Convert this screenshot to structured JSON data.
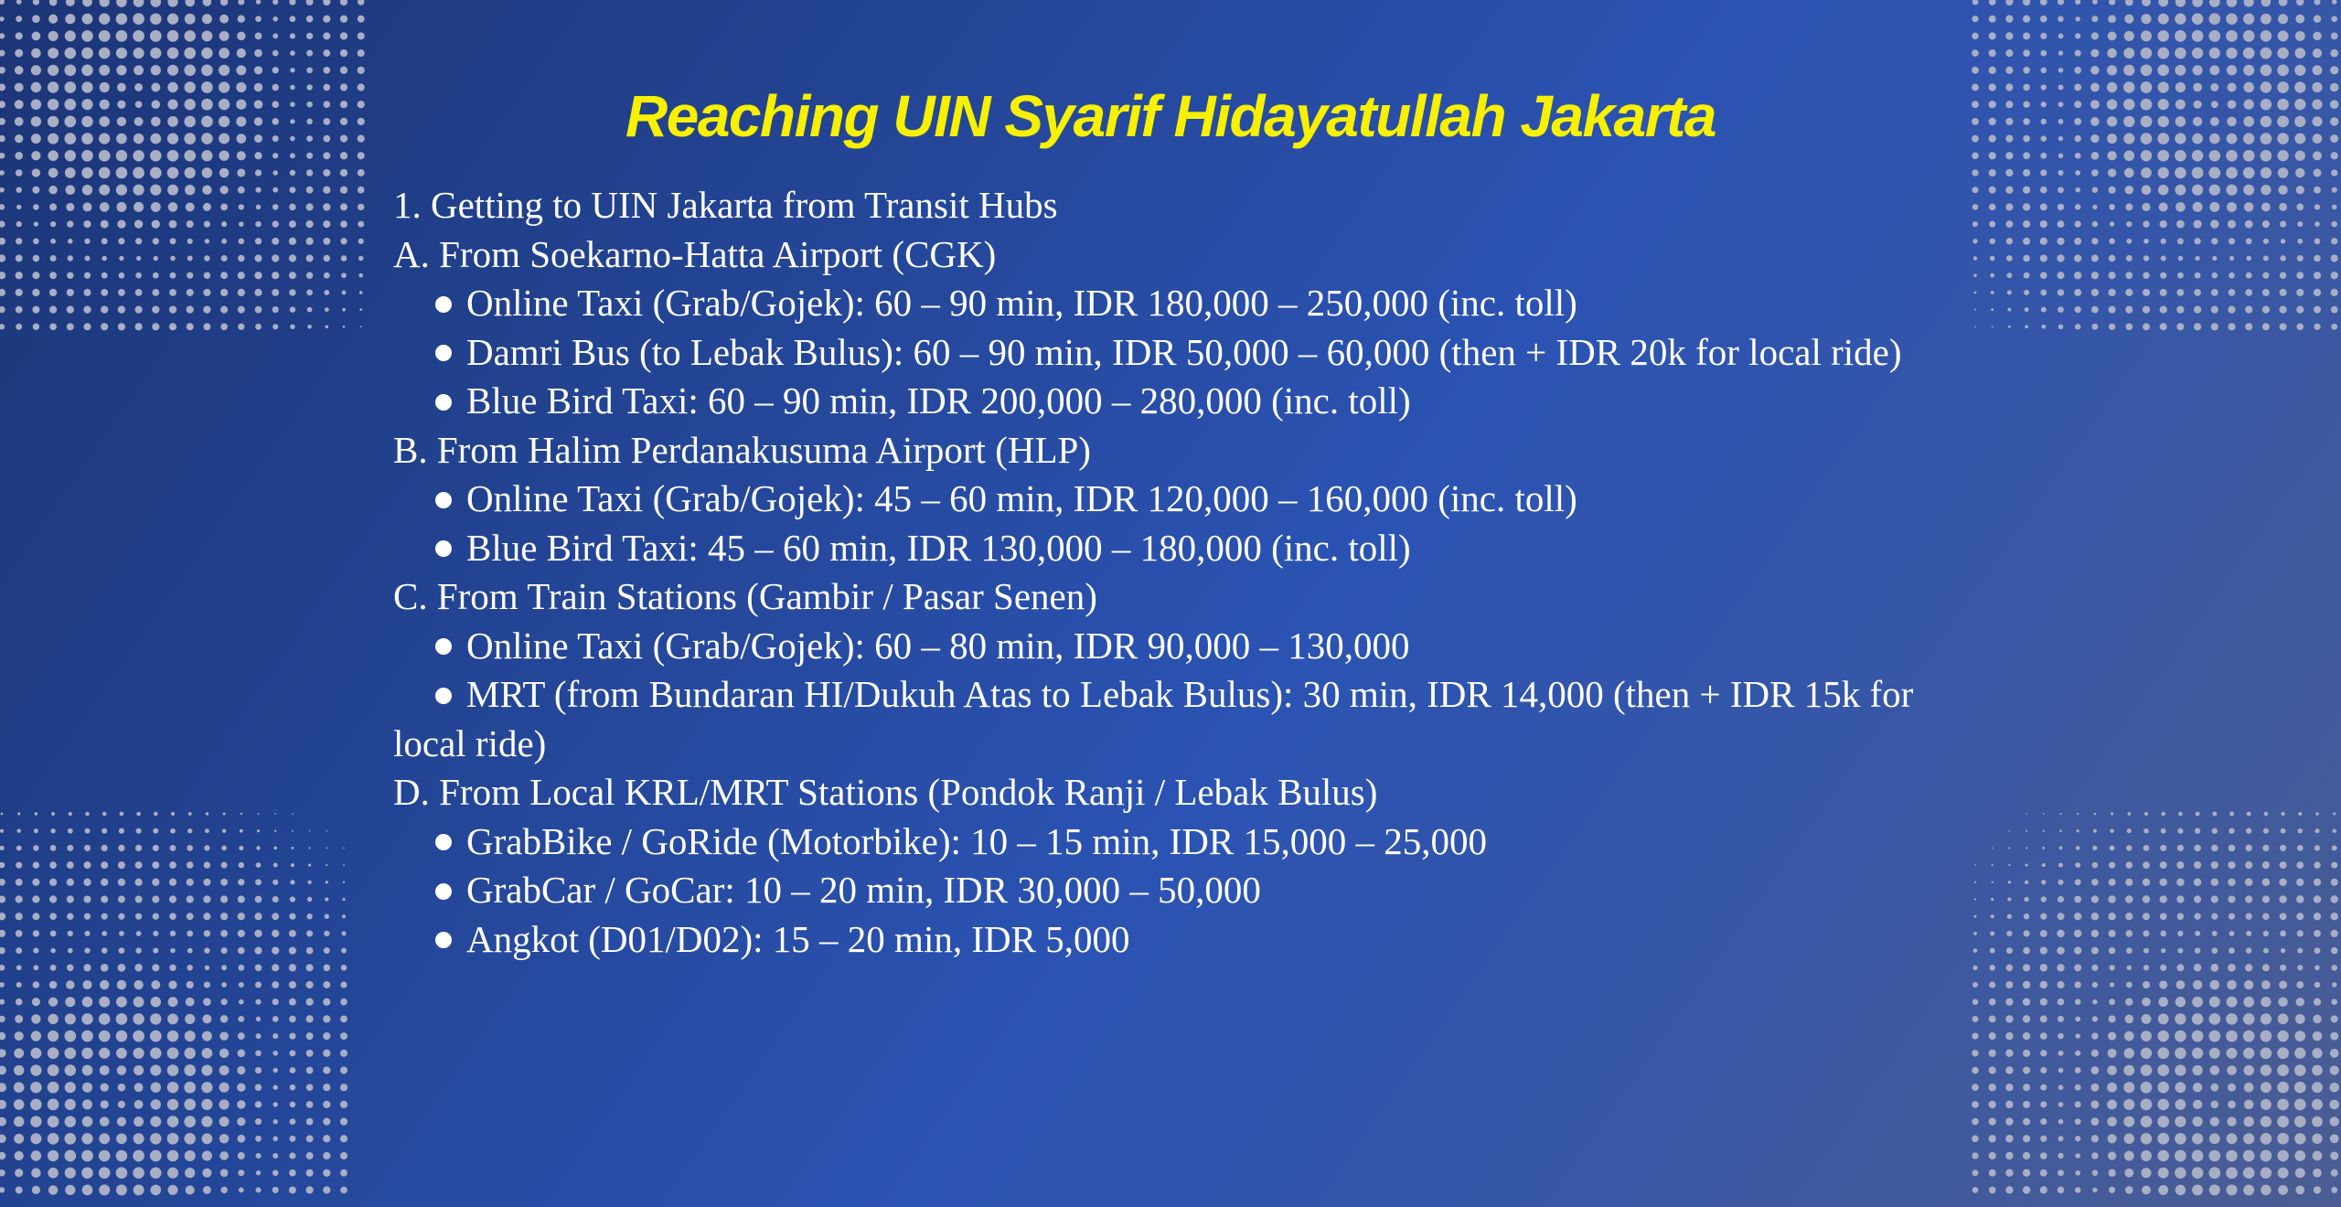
{
  "title": "Reaching UIN Syarif Hidayatullah Jakarta",
  "colors": {
    "title": "#f7f000",
    "text": "#ffffff",
    "dots": "#a8aec4",
    "background_start": "#1c3577",
    "background_end": "#4b5d93"
  },
  "decorations": [
    "halftone-dots-top-left",
    "halftone-dots-top-right",
    "halftone-dots-bottom-left",
    "halftone-dots-bottom-right"
  ],
  "section_heading": "1. Getting to UIN Jakarta from Transit Hubs",
  "groups": [
    {
      "heading": "A. From Soekarno-Hatta Airport (CGK)",
      "items": [
        "Online Taxi (Grab/Gojek): 60 – 90 min, IDR 180,000 – 250,000 (inc. toll)",
        "Damri Bus (to Lebak Bulus): 60 – 90 min, IDR 50,000 – 60,000 (then + IDR 20k for local ride)",
        "Blue Bird Taxi: 60 – 90 min, IDR 200,000 – 280,000 (inc. toll)"
      ]
    },
    {
      "heading": "B. From Halim Perdanakusuma Airport (HLP)",
      "items": [
        "Online Taxi (Grab/Gojek): 45 – 60 min, IDR 120,000 – 160,000 (inc. toll)",
        "Blue Bird Taxi: 45 – 60 min, IDR 130,000 – 180,000 (inc. toll)"
      ]
    },
    {
      "heading": "C. From Train Stations (Gambir / Pasar Senen)",
      "items": [
        "Online Taxi (Grab/Gojek): 60 – 80 min, IDR 90,000 – 130,000",
        "MRT (from Bundaran HI/Dukuh Atas to Lebak Bulus): 30 min, IDR 14,000 (then + IDR 15k for local ride)"
      ]
    },
    {
      "heading": "D. From Local KRL/MRT Stations (Pondok Ranji / Lebak Bulus)",
      "items": [
        "GrabBike / GoRide (Motorbike): 10 – 15 min, IDR 15,000 – 25,000",
        "GrabCar / GoCar: 10 – 20 min, IDR 30,000 – 50,000",
        "Angkot (D01/D02): 15 – 20 min, IDR 5,000"
      ]
    }
  ]
}
